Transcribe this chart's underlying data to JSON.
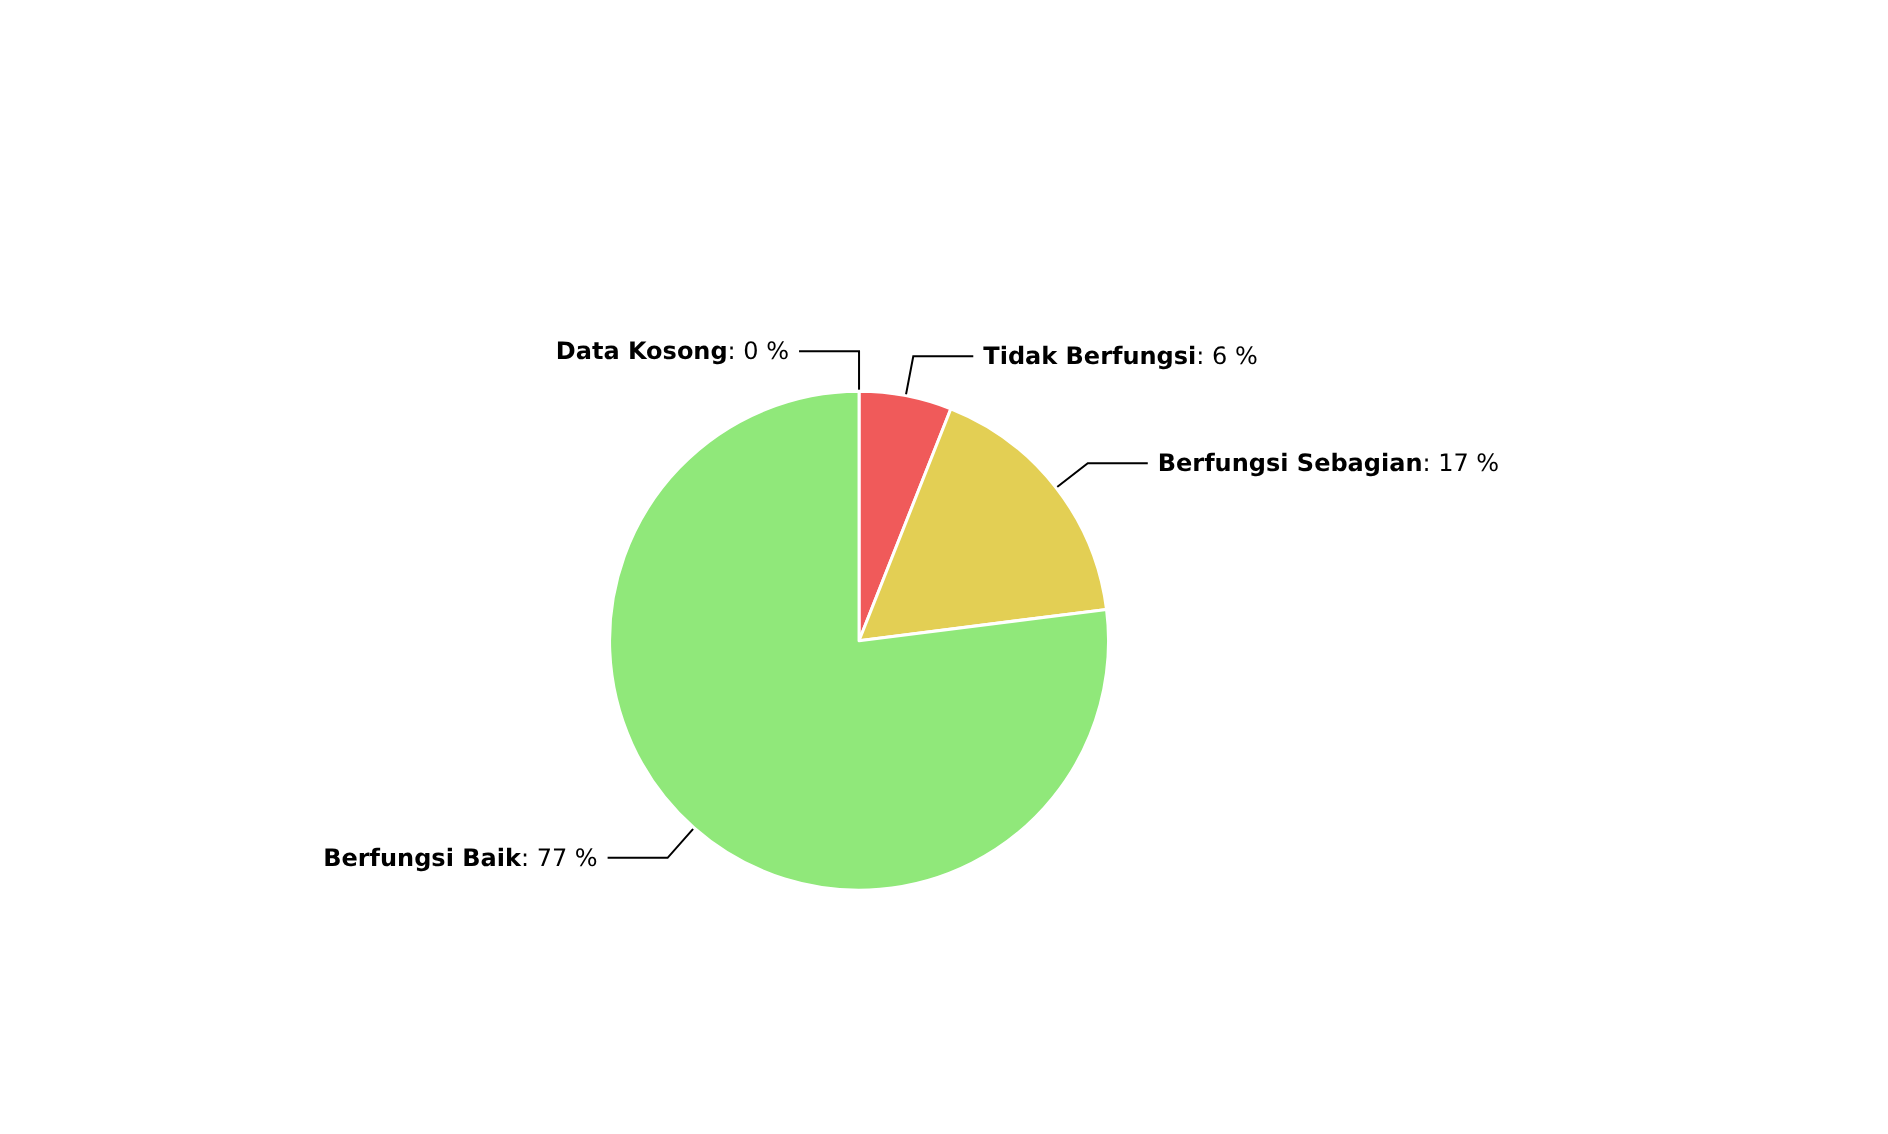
{
  "chart_data": {
    "type": "pie",
    "categories": [
      "Data Kosong",
      "Tidak Berfungsi",
      "Berfungsi Sebagian",
      "Berfungsi Baik"
    ],
    "values": [
      0,
      6,
      17,
      77
    ],
    "value_labels": [
      ": 0 %",
      ": 6 %",
      ": 17 %",
      ": 77 %"
    ],
    "colors": [
      "#b0b0b0",
      "#f05a5a",
      "#e3cf54",
      "#90e87a"
    ]
  }
}
